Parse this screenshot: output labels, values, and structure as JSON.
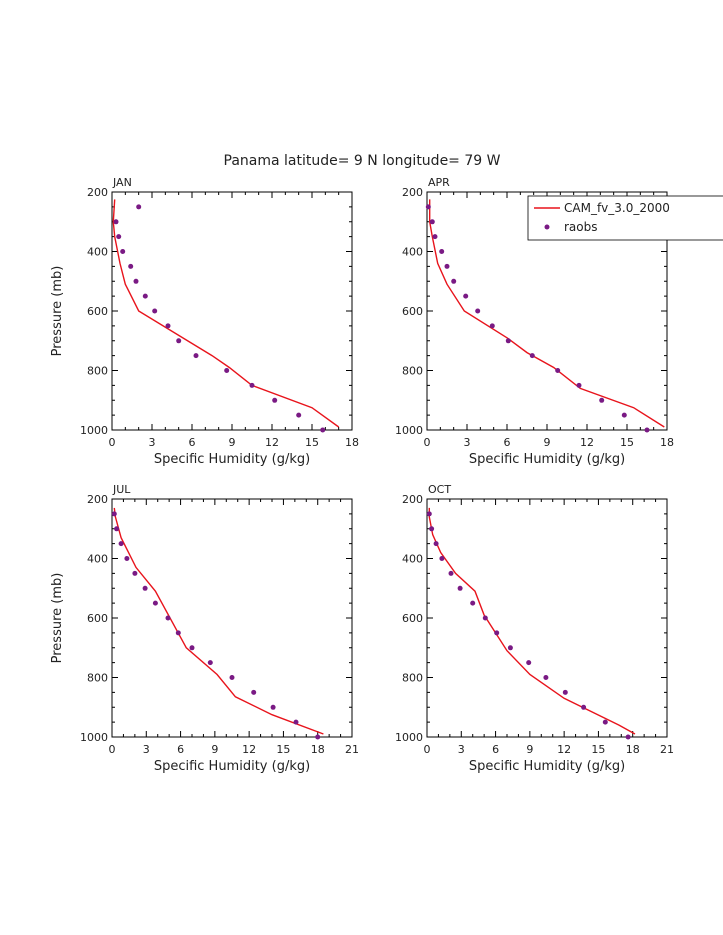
{
  "figure": {
    "title": "Panama  latitude= 9 N longitude= 79 W"
  },
  "legend": {
    "model_label": "CAM_fv_3.0_2000",
    "obs_label": "raobs",
    "model_color": "#e8141c",
    "obs_color": "#7a1a84"
  },
  "chart_data": [
    {
      "type": "line",
      "panel_label": "JAN",
      "xlabel": "Specific Humidity (g/kg)",
      "ylabel": "Pressure (mb)",
      "xlim": [
        0,
        18
      ],
      "ylim": [
        1000,
        200
      ],
      "xticks": [
        0,
        3,
        6,
        9,
        12,
        15,
        18
      ],
      "yticks": [
        200,
        400,
        600,
        800,
        1000
      ],
      "series": [
        {
          "name": "CAM_fv_3.0_2000",
          "points": [
            [
              17.0,
              990
            ],
            [
              15.0,
              925
            ],
            [
              10.5,
              850
            ],
            [
              8.8,
              790
            ],
            [
              7.5,
              750
            ],
            [
              2.0,
              600
            ],
            [
              1.0,
              510
            ],
            [
              0.6,
              440
            ],
            [
              0.2,
              350
            ],
            [
              0.1,
              300
            ],
            [
              0.2,
              225
            ]
          ]
        },
        {
          "name": "raobs",
          "points": [
            [
              15.8,
              1000
            ],
            [
              14.0,
              950
            ],
            [
              12.2,
              900
            ],
            [
              10.5,
              850
            ],
            [
              8.6,
              800
            ],
            [
              6.3,
              750
            ],
            [
              5.0,
              700
            ],
            [
              4.2,
              650
            ],
            [
              3.2,
              600
            ],
            [
              2.5,
              550
            ],
            [
              1.8,
              500
            ],
            [
              1.4,
              450
            ],
            [
              0.8,
              400
            ],
            [
              0.5,
              350
            ],
            [
              0.3,
              300
            ],
            [
              2.0,
              250
            ]
          ]
        }
      ]
    },
    {
      "type": "line",
      "panel_label": "APR",
      "xlabel": "Specific Humidity (g/kg)",
      "ylabel": "",
      "xlim": [
        0,
        18
      ],
      "ylim": [
        1000,
        200
      ],
      "xticks": [
        0,
        3,
        6,
        9,
        12,
        15,
        18
      ],
      "yticks": [
        200,
        400,
        600,
        800,
        1000
      ],
      "series": [
        {
          "name": "CAM_fv_3.0_2000",
          "points": [
            [
              17.8,
              990
            ],
            [
              15.5,
              925
            ],
            [
              11.5,
              860
            ],
            [
              9.5,
              790
            ],
            [
              7.5,
              740
            ],
            [
              6.0,
              690
            ],
            [
              2.8,
              600
            ],
            [
              1.5,
              510
            ],
            [
              0.8,
              440
            ],
            [
              0.4,
              350
            ],
            [
              0.2,
              300
            ],
            [
              0.2,
              225
            ]
          ]
        },
        {
          "name": "raobs",
          "points": [
            [
              16.5,
              1000
            ],
            [
              14.8,
              950
            ],
            [
              13.1,
              900
            ],
            [
              11.4,
              850
            ],
            [
              9.8,
              800
            ],
            [
              7.9,
              750
            ],
            [
              6.1,
              700
            ],
            [
              4.9,
              650
            ],
            [
              3.8,
              600
            ],
            [
              2.9,
              550
            ],
            [
              2.0,
              500
            ],
            [
              1.5,
              450
            ],
            [
              1.1,
              400
            ],
            [
              0.6,
              350
            ],
            [
              0.4,
              300
            ],
            [
              0.1,
              250
            ]
          ]
        }
      ]
    },
    {
      "type": "line",
      "panel_label": "JUL",
      "xlabel": "Specific Humidity (g/kg)",
      "ylabel": "Pressure (mb)",
      "xlim": [
        0,
        21
      ],
      "ylim": [
        1000,
        200
      ],
      "xticks": [
        0,
        3,
        6,
        9,
        12,
        15,
        18,
        21
      ],
      "yticks": [
        200,
        400,
        600,
        800,
        1000
      ],
      "series": [
        {
          "name": "CAM_fv_3.0_2000",
          "points": [
            [
              18.5,
              990
            ],
            [
              14.0,
              925
            ],
            [
              10.8,
              865
            ],
            [
              9.2,
              790
            ],
            [
              6.5,
              700
            ],
            [
              3.8,
              510
            ],
            [
              2.1,
              430
            ],
            [
              0.8,
              330
            ],
            [
              0.3,
              260
            ],
            [
              0.2,
              230
            ]
          ]
        },
        {
          "name": "raobs",
          "points": [
            [
              18.0,
              1000
            ],
            [
              16.1,
              950
            ],
            [
              14.1,
              900
            ],
            [
              12.4,
              850
            ],
            [
              10.5,
              800
            ],
            [
              8.6,
              750
            ],
            [
              7.0,
              700
            ],
            [
              5.8,
              650
            ],
            [
              4.9,
              600
            ],
            [
              3.8,
              550
            ],
            [
              2.9,
              500
            ],
            [
              2.0,
              450
            ],
            [
              1.3,
              400
            ],
            [
              0.8,
              350
            ],
            [
              0.4,
              300
            ],
            [
              0.2,
              250
            ]
          ]
        }
      ]
    },
    {
      "type": "line",
      "panel_label": "OCT",
      "xlabel": "Specific Humidity (g/kg)",
      "ylabel": "",
      "xlim": [
        0,
        21
      ],
      "ylim": [
        1000,
        200
      ],
      "xticks": [
        0,
        3,
        6,
        9,
        12,
        15,
        18,
        21
      ],
      "yticks": [
        200,
        400,
        600,
        800,
        1000
      ],
      "series": [
        {
          "name": "CAM_fv_3.0_2000",
          "points": [
            [
              18.2,
              990
            ],
            [
              16.8,
              960
            ],
            [
              12.0,
              870
            ],
            [
              9.0,
              790
            ],
            [
              7.0,
              710
            ],
            [
              5.0,
              590
            ],
            [
              4.2,
              510
            ],
            [
              2.5,
              450
            ],
            [
              1.2,
              380
            ],
            [
              0.5,
              320
            ],
            [
              0.2,
              260
            ],
            [
              0.2,
              230
            ]
          ]
        },
        {
          "name": "raobs",
          "points": [
            [
              17.6,
              1000
            ],
            [
              15.6,
              950
            ],
            [
              13.7,
              900
            ],
            [
              12.1,
              850
            ],
            [
              10.4,
              800
            ],
            [
              8.9,
              750
            ],
            [
              7.3,
              700
            ],
            [
              6.1,
              650
            ],
            [
              5.1,
              600
            ],
            [
              4.0,
              550
            ],
            [
              2.9,
              500
            ],
            [
              2.1,
              450
            ],
            [
              1.3,
              400
            ],
            [
              0.8,
              350
            ],
            [
              0.4,
              300
            ],
            [
              0.2,
              250
            ]
          ]
        }
      ]
    }
  ]
}
